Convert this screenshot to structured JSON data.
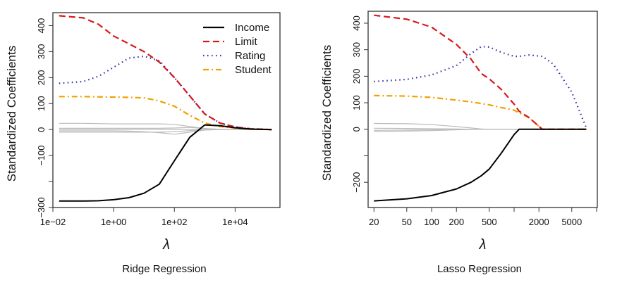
{
  "chart_data": [
    {
      "type": "line",
      "caption": "Ridge Regression",
      "xlabel": "λ",
      "ylabel": "Standardized Coefficients",
      "xscale": "log",
      "xlim": [
        0.01,
        300000
      ],
      "ylim": [
        -300,
        450
      ],
      "xticks": [
        0.01,
        1,
        100,
        10000
      ],
      "xtick_labels": [
        "1e−02",
        "1e+00",
        "1e+02",
        "1e+04"
      ],
      "yticks": [
        400,
        300,
        200,
        100,
        0,
        -100,
        -200,
        -300
      ],
      "ytick_labels": [
        "400",
        "300",
        "200",
        "100",
        "0",
        "−100",
        "",
        "−300"
      ],
      "legend": {
        "position": "top-right",
        "entries": [
          "Income",
          "Limit",
          "Rating",
          "Student"
        ]
      },
      "x": [
        0.016,
        0.1,
        0.32,
        1,
        3.2,
        10,
        32,
        100,
        320,
        1000,
        3200,
        10000,
        32000,
        160000
      ],
      "series": [
        {
          "name": "Income",
          "color": "#000000",
          "style": "solid",
          "values": [
            -275,
            -275,
            -274,
            -270,
            -262,
            -245,
            -210,
            -120,
            -30,
            18,
            15,
            7,
            2,
            0
          ]
        },
        {
          "name": "Limit",
          "color": "#d7191c",
          "style": "dashed",
          "values": [
            438,
            430,
            405,
            360,
            330,
            300,
            260,
            200,
            130,
            60,
            25,
            10,
            3,
            0
          ]
        },
        {
          "name": "Rating",
          "color": "#2b2ba8",
          "style": "dotted",
          "values": [
            178,
            185,
            205,
            240,
            275,
            282,
            265,
            200,
            130,
            60,
            25,
            10,
            3,
            0
          ]
        },
        {
          "name": "Student",
          "color": "#f0a000",
          "style": "dotdash",
          "values": [
            127,
            127,
            126,
            125,
            124,
            122,
            110,
            90,
            55,
            25,
            12,
            6,
            2,
            0
          ]
        }
      ],
      "other_series": [
        [
          24,
          24,
          23,
          22,
          22,
          22,
          22,
          20,
          12,
          4,
          1,
          0,
          0,
          0
        ],
        [
          5,
          5,
          5,
          5,
          5,
          5,
          5,
          6,
          8,
          4,
          1,
          0,
          0,
          0
        ],
        [
          0,
          0,
          0,
          0,
          0,
          0,
          0,
          0,
          0,
          0,
          0,
          0,
          0,
          0
        ],
        [
          -5,
          -5,
          -5,
          -5,
          -6,
          -8,
          -12,
          -18,
          -10,
          -2,
          0,
          0,
          0,
          0
        ],
        [
          -10,
          -10,
          -10,
          -10,
          -10,
          -10,
          -10,
          -8,
          -4,
          -1,
          0,
          0,
          0,
          0
        ]
      ],
      "other_color": "#bbbbbb"
    },
    {
      "type": "line",
      "caption": "Lasso Regression",
      "xlabel": "λ",
      "ylabel": "Standardized Coefficients",
      "xscale": "log",
      "xlim": [
        17,
        10200
      ],
      "ylim": [
        -295,
        445
      ],
      "xticks": [
        20,
        50,
        100,
        200,
        500,
        1000,
        2000,
        5000,
        10000
      ],
      "xtick_labels": [
        "20",
        "50",
        "100",
        "200",
        "500",
        "",
        "2000",
        "5000",
        ""
      ],
      "yticks": [
        400,
        300,
        200,
        100,
        0,
        -100,
        -200
      ],
      "ytick_labels": [
        "400",
        "300",
        "200",
        "100",
        "0",
        "",
        "−200"
      ],
      "x": [
        20,
        50,
        100,
        200,
        300,
        400,
        500,
        700,
        1000,
        1150,
        1500,
        2200,
        3000,
        5000,
        7500
      ],
      "series": [
        {
          "name": "Income",
          "color": "#000000",
          "style": "solid",
          "values": [
            -270,
            -262,
            -250,
            -225,
            -200,
            -175,
            -150,
            -90,
            -20,
            0,
            0,
            0,
            0,
            0,
            0
          ]
        },
        {
          "name": "Limit",
          "color": "#d7191c",
          "style": "dashed",
          "values": [
            430,
            415,
            385,
            320,
            265,
            210,
            190,
            150,
            95,
            68,
            45,
            0,
            0,
            0,
            0
          ]
        },
        {
          "name": "Rating",
          "color": "#2b2ba8",
          "style": "dotted",
          "values": [
            180,
            188,
            205,
            240,
            285,
            312,
            310,
            290,
            275,
            275,
            280,
            275,
            245,
            140,
            5
          ]
        },
        {
          "name": "Student",
          "color": "#f0a000",
          "style": "dotdash",
          "values": [
            127,
            125,
            120,
            110,
            103,
            97,
            92,
            82,
            72,
            62,
            45,
            0,
            0,
            0,
            0
          ]
        }
      ],
      "other_series": [
        [
          22,
          21,
          18,
          10,
          5,
          1,
          0,
          0,
          0,
          0,
          0,
          0,
          0,
          0,
          0
        ],
        [
          4,
          3,
          2,
          1,
          0,
          0,
          0,
          0,
          0,
          0,
          0,
          0,
          0,
          0,
          0
        ],
        [
          -4,
          -3,
          -2,
          -1,
          0,
          0,
          0,
          0,
          0,
          0,
          0,
          0,
          0,
          0,
          0
        ],
        [
          -8,
          -7,
          -5,
          -2,
          -1,
          0,
          0,
          0,
          0,
          0,
          0,
          0,
          0,
          0,
          0
        ]
      ],
      "other_color": "#bbbbbb"
    }
  ]
}
